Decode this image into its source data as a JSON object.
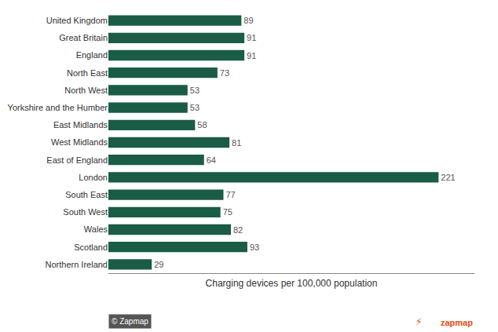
{
  "chart_data": {
    "type": "bar",
    "orientation": "horizontal",
    "categories": [
      "United Kingdom",
      "Great Britain",
      "England",
      "North East",
      "North West",
      "Yorkshire and the Humber",
      "East Midlands",
      "West Midlands",
      "East of England",
      "London",
      "South East",
      "South West",
      "Wales",
      "Scotland",
      "Northern Ireland"
    ],
    "values": [
      89,
      91,
      91,
      73,
      53,
      53,
      58,
      81,
      64,
      221,
      77,
      75,
      82,
      93,
      29
    ],
    "color": "#1a5c45",
    "xlabel": "Charging devices per 100,000 population",
    "xlim": [
      0,
      245
    ],
    "data_labels": true,
    "tick_labels": "y",
    "grid": false,
    "annotations": [
      {
        "text": "© Zapmap",
        "color": "#ffffff"
      },
      {
        "text": "⚡",
        "color": "#e8490f"
      },
      {
        "text": "zapmap",
        "color": "#e8490f"
      }
    ]
  }
}
